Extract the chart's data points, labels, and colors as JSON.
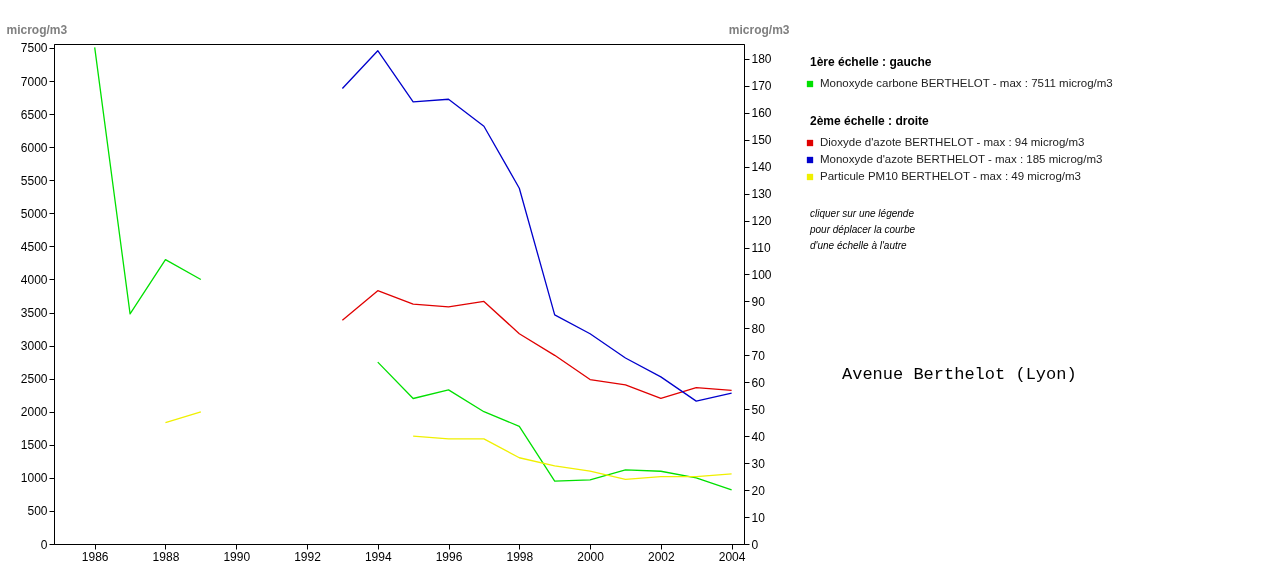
{
  "chart_data": {
    "type": "line",
    "title": "Avenue Berthelot (Lyon)",
    "ylabel": "microg/m3",
    "y2label": "microg/m3",
    "x": [
      1986,
      1987,
      1988,
      1989,
      1990,
      1991,
      1992,
      1993,
      1994,
      1995,
      1996,
      1997,
      1998,
      1999,
      2000,
      2001,
      2002,
      2003,
      2004
    ],
    "series": [
      {
        "name": "Monoxyde carbone BERTHELOT - max : 7511 microg/m3",
        "color": "#00e000",
        "values": [
          7510,
          3480,
          4300,
          4000,
          null,
          null,
          null,
          null,
          2750,
          2200,
          2330,
          2000,
          1780,
          950,
          970,
          1120,
          1100,
          1000,
          820
        ]
      },
      {
        "name": "Dioxyde d'azote BERTHELOT - max : 94 microg/m3",
        "color": "#e00000",
        "axis": "y2",
        "values": [
          null,
          null,
          null,
          null,
          null,
          null,
          null,
          83,
          94,
          89,
          88,
          90,
          78,
          70,
          61,
          59,
          54,
          58,
          57
        ]
      },
      {
        "name": "Monoxyde d'azote BERTHELOT - max : 185 microg/m3",
        "color": "#0000cc",
        "axis": "y2",
        "values": [
          null,
          null,
          null,
          null,
          null,
          null,
          null,
          169,
          183,
          164,
          165,
          155,
          132,
          85,
          78,
          69,
          62,
          53,
          56
        ]
      },
      {
        "name": "Particule PM10 BERTHELOT - max : 49 microg/m3",
        "color": "#f0f000",
        "axis": "y2",
        "values": [
          null,
          null,
          45,
          49,
          null,
          null,
          null,
          null,
          null,
          40,
          39,
          39,
          32,
          29,
          27,
          24,
          25,
          25,
          26
        ]
      }
    ],
    "xlim": [
      1984.85,
      2004.35
    ],
    "xticks": [
      1986,
      1988,
      1990,
      1992,
      1994,
      1996,
      1998,
      2000,
      2002,
      2004
    ],
    "ylim": [
      0,
      7560
    ],
    "yticks": [
      0,
      500,
      1000,
      1500,
      2000,
      2500,
      3000,
      3500,
      4000,
      4500,
      5000,
      5500,
      6000,
      6500,
      7000,
      7500
    ],
    "y2lim": [
      0,
      185.5
    ],
    "y2ticks": [
      0,
      10,
      20,
      30,
      40,
      50,
      60,
      70,
      80,
      90,
      100,
      110,
      120,
      130,
      140,
      150,
      160,
      170,
      180
    ],
    "grid": false,
    "legend": "right",
    "marker": "none",
    "line_style": "solid",
    "annotations": [
      "1ère échelle : gauche",
      "2ème échelle : droite",
      "cliquer sur une légende",
      "pour déplacer la courbe",
      "d'une échelle à l'autre"
    ]
  }
}
